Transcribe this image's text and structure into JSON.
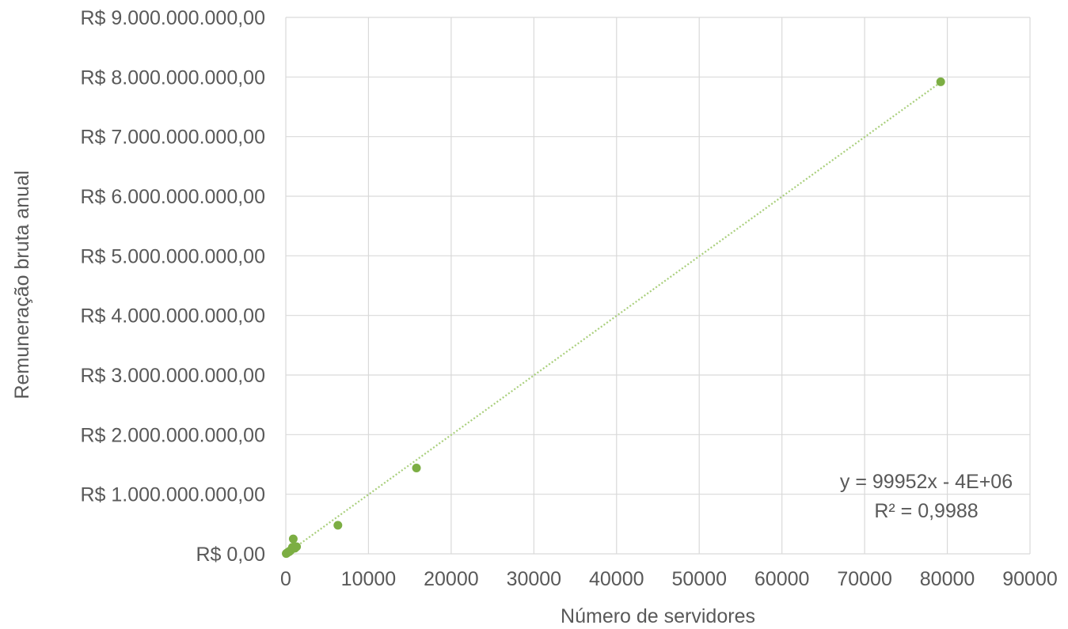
{
  "chart_data": {
    "type": "scatter",
    "xlabel": "Número de servidores",
    "ylabel": "Remuneração bruta anual",
    "xlim": [
      0,
      90000
    ],
    "ylim": [
      0,
      9000000000
    ],
    "x_ticks": [
      0,
      10000,
      20000,
      30000,
      40000,
      50000,
      60000,
      70000,
      80000,
      90000
    ],
    "x_tick_labels": [
      "0",
      "10000",
      "20000",
      "30000",
      "40000",
      "50000",
      "60000",
      "70000",
      "80000",
      "90000"
    ],
    "y_ticks": [
      0,
      1000000000,
      2000000000,
      3000000000,
      4000000000,
      5000000000,
      6000000000,
      7000000000,
      8000000000,
      9000000000
    ],
    "y_tick_labels": [
      "R$ 0,00",
      "R$ 1.000.000.000,00",
      "R$ 2.000.000.000,00",
      "R$ 3.000.000.000,00",
      "R$ 4.000.000.000,00",
      "R$ 5.000.000.000,00",
      "R$ 6.000.000.000,00",
      "R$ 7.000.000.000,00",
      "R$ 8.000.000.000,00",
      "R$ 9.000.000.000,00"
    ],
    "grid": true,
    "marker_color": "#7cae43",
    "trendline_color": "#a9cf7c",
    "series": [
      {
        "points": [
          {
            "x": 50,
            "y": 5000000
          },
          {
            "x": 150,
            "y": 15000000
          },
          {
            "x": 250,
            "y": 25000000
          },
          {
            "x": 350,
            "y": 35000000
          },
          {
            "x": 450,
            "y": 40000000
          },
          {
            "x": 600,
            "y": 60000000
          },
          {
            "x": 800,
            "y": 110000000
          },
          {
            "x": 900,
            "y": 250000000
          },
          {
            "x": 1100,
            "y": 95000000
          },
          {
            "x": 1300,
            "y": 120000000
          },
          {
            "x": 6300,
            "y": 480000000
          },
          {
            "x": 15800,
            "y": 1440000000
          },
          {
            "x": 79200,
            "y": 7920000000
          }
        ]
      }
    ],
    "trendline": {
      "type": "linear",
      "slope": 99952,
      "intercept": -4000000,
      "equation": "y = 99952x - 4E+06",
      "r_squared": "R² = 0,9988"
    }
  }
}
